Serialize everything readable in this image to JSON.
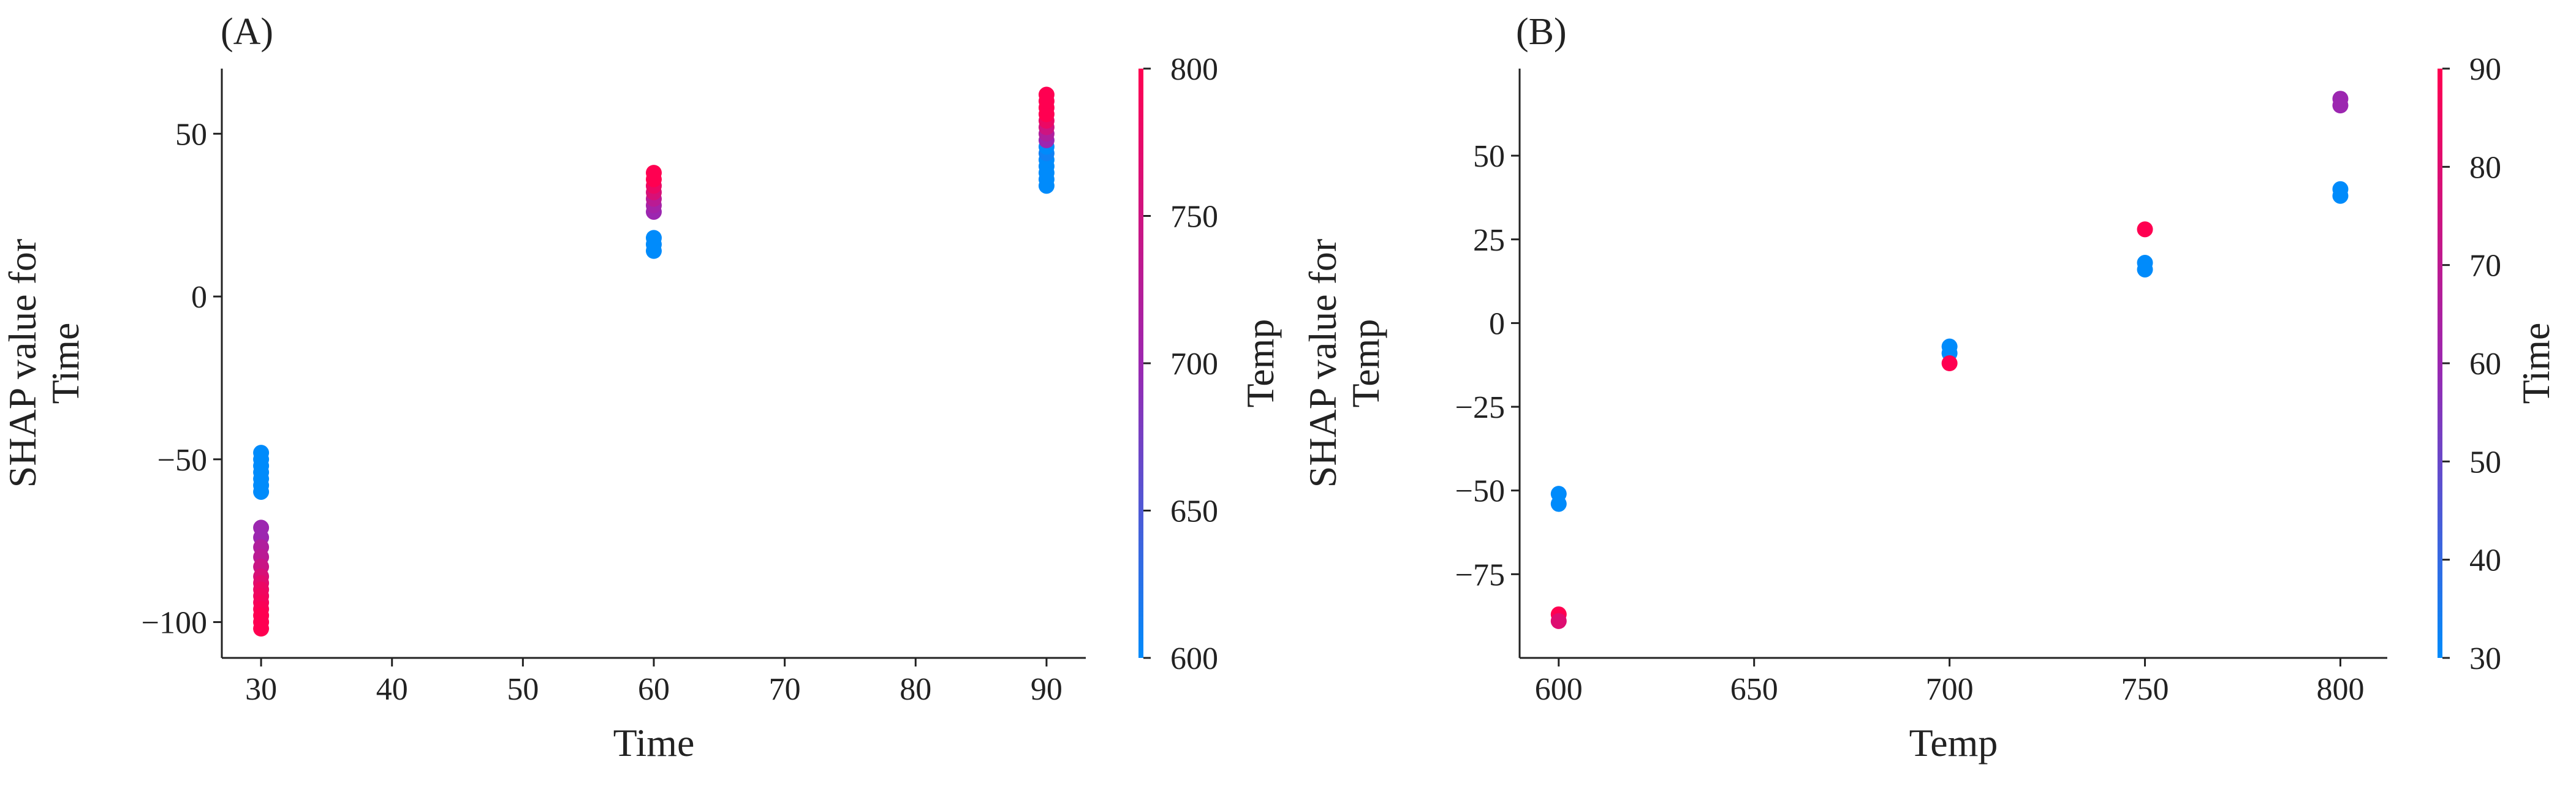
{
  "colors": {
    "low": "#008bfb",
    "high": "#ff0051",
    "mid": "#9c27b0",
    "axis": "#222222"
  },
  "chart_data": [
    {
      "type": "scatter",
      "panel_label": "(A)",
      "xlabel": "Time",
      "ylabel": "SHAP value for Time",
      "xlim": [
        27,
        93
      ],
      "ylim": [
        -111,
        70
      ],
      "xticks": [
        30,
        40,
        50,
        60,
        70,
        80,
        90
      ],
      "yticks": [
        -100,
        -50,
        0,
        50
      ],
      "colorbar": {
        "label": "Temp",
        "range": [
          600,
          800
        ],
        "ticks": [
          600,
          650,
          700,
          750,
          800
        ]
      },
      "points": [
        {
          "x": 30,
          "y": -48,
          "c": 600
        },
        {
          "x": 30,
          "y": -50,
          "c": 600
        },
        {
          "x": 30,
          "y": -52,
          "c": 600
        },
        {
          "x": 30,
          "y": -54,
          "c": 600
        },
        {
          "x": 30,
          "y": -56,
          "c": 600
        },
        {
          "x": 30,
          "y": -58,
          "c": 600
        },
        {
          "x": 30,
          "y": -60,
          "c": 600
        },
        {
          "x": 30,
          "y": -71,
          "c": 700
        },
        {
          "x": 30,
          "y": -74,
          "c": 700
        },
        {
          "x": 30,
          "y": -77,
          "c": 720
        },
        {
          "x": 30,
          "y": -80,
          "c": 730
        },
        {
          "x": 30,
          "y": -83,
          "c": 745
        },
        {
          "x": 30,
          "y": -86,
          "c": 760
        },
        {
          "x": 30,
          "y": -88,
          "c": 770
        },
        {
          "x": 30,
          "y": -90,
          "c": 780
        },
        {
          "x": 30,
          "y": -92,
          "c": 785
        },
        {
          "x": 30,
          "y": -94,
          "c": 790
        },
        {
          "x": 30,
          "y": -96,
          "c": 795
        },
        {
          "x": 30,
          "y": -98,
          "c": 800
        },
        {
          "x": 30,
          "y": -100,
          "c": 800
        },
        {
          "x": 30,
          "y": -102,
          "c": 800
        },
        {
          "x": 60,
          "y": 14,
          "c": 600
        },
        {
          "x": 60,
          "y": 16,
          "c": 600
        },
        {
          "x": 60,
          "y": 18,
          "c": 600
        },
        {
          "x": 60,
          "y": 26,
          "c": 700
        },
        {
          "x": 60,
          "y": 28,
          "c": 710
        },
        {
          "x": 60,
          "y": 30,
          "c": 730
        },
        {
          "x": 60,
          "y": 32,
          "c": 760
        },
        {
          "x": 60,
          "y": 34,
          "c": 780
        },
        {
          "x": 60,
          "y": 36,
          "c": 800
        },
        {
          "x": 60,
          "y": 38,
          "c": 800
        },
        {
          "x": 90,
          "y": 34,
          "c": 600
        },
        {
          "x": 90,
          "y": 36,
          "c": 600
        },
        {
          "x": 90,
          "y": 38,
          "c": 600
        },
        {
          "x": 90,
          "y": 40,
          "c": 600
        },
        {
          "x": 90,
          "y": 42,
          "c": 600
        },
        {
          "x": 90,
          "y": 44,
          "c": 610
        },
        {
          "x": 90,
          "y": 46,
          "c": 600
        },
        {
          "x": 90,
          "y": 48,
          "c": 700
        },
        {
          "x": 90,
          "y": 50,
          "c": 720
        },
        {
          "x": 90,
          "y": 52,
          "c": 750
        },
        {
          "x": 90,
          "y": 54,
          "c": 780
        },
        {
          "x": 90,
          "y": 56,
          "c": 800
        },
        {
          "x": 90,
          "y": 58,
          "c": 800
        },
        {
          "x": 90,
          "y": 60,
          "c": 800
        },
        {
          "x": 90,
          "y": 62,
          "c": 800
        }
      ]
    },
    {
      "type": "scatter",
      "panel_label": "(B)",
      "xlabel": "Temp",
      "ylabel": "SHAP value for Temp",
      "xlim": [
        590,
        812
      ],
      "ylim": [
        -100,
        76
      ],
      "xticks": [
        600,
        650,
        700,
        750,
        800
      ],
      "yticks": [
        -75,
        -50,
        -25,
        0,
        25,
        50
      ],
      "colorbar": {
        "label": "Time",
        "range": [
          30,
          90
        ],
        "ticks": [
          30,
          40,
          50,
          60,
          70,
          80,
          90
        ]
      },
      "points": [
        {
          "x": 600,
          "y": -51,
          "c": 30
        },
        {
          "x": 600,
          "y": -54,
          "c": 30
        },
        {
          "x": 600,
          "y": -87,
          "c": 90
        },
        {
          "x": 600,
          "y": -89,
          "c": 80
        },
        {
          "x": 700,
          "y": -7,
          "c": 30
        },
        {
          "x": 700,
          "y": -9,
          "c": 30
        },
        {
          "x": 700,
          "y": -12,
          "c": 90
        },
        {
          "x": 750,
          "y": 16,
          "c": 30
        },
        {
          "x": 750,
          "y": 18,
          "c": 30
        },
        {
          "x": 750,
          "y": 28,
          "c": 90
        },
        {
          "x": 800,
          "y": 38,
          "c": 30
        },
        {
          "x": 800,
          "y": 40,
          "c": 30
        },
        {
          "x": 800,
          "y": 65,
          "c": 60
        },
        {
          "x": 800,
          "y": 67,
          "c": 60
        }
      ]
    }
  ]
}
